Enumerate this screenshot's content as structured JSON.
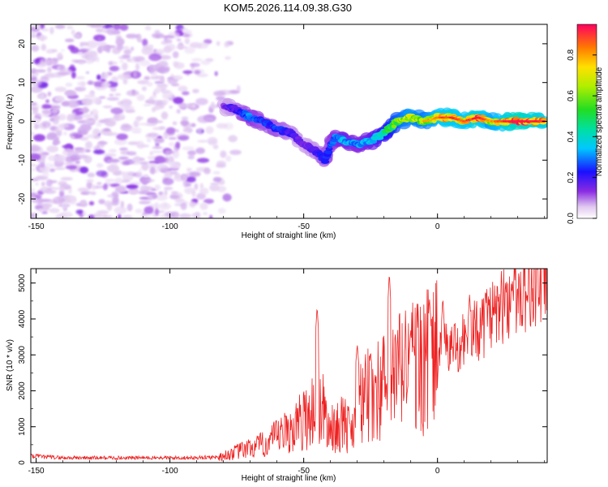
{
  "figure": {
    "title": "KOM5.2026.114.09.38.G30"
  },
  "chart_data": [
    {
      "type": "heatmap",
      "xlabel": "Height of straight line (km)",
      "ylabel": "Frequency (Hz)",
      "xlim": [
        -152,
        41
      ],
      "ylim": [
        -25,
        25
      ],
      "x_ticks": [
        -150,
        -100,
        -50,
        0
      ],
      "y_ticks": [
        -20,
        -10,
        0,
        10,
        20
      ],
      "colorbar": {
        "label": "Normalized spectral amplitude",
        "range": [
          0,
          0.95
        ],
        "ticks": [
          0.0,
          0.2,
          0.4,
          0.6,
          0.8
        ]
      },
      "ridge": {
        "x": [
          -80,
          -75,
          -70,
          -65,
          -60,
          -55,
          -50,
          -45,
          -42,
          -40,
          -38,
          -35,
          -30,
          -25,
          -20,
          -15,
          -10,
          -5,
          0,
          5,
          10,
          15,
          20,
          25,
          30,
          35,
          40
        ],
        "y": [
          4,
          3,
          1,
          0,
          -2,
          -3,
          -6,
          -8,
          -10,
          -6,
          -4,
          -5,
          -6,
          -5,
          -3,
          0,
          1,
          0,
          1,
          1,
          0,
          1,
          0,
          0,
          0,
          0,
          0
        ],
        "amplitude": [
          0.15,
          0.2,
          0.3,
          0.25,
          0.25,
          0.2,
          0.15,
          0.2,
          0.25,
          0.25,
          0.3,
          0.35,
          0.3,
          0.35,
          0.45,
          0.6,
          0.7,
          0.65,
          0.75,
          0.8,
          0.75,
          0.85,
          0.7,
          0.8,
          0.9,
          0.85,
          0.8
        ]
      }
    },
    {
      "type": "line",
      "xlabel": "Height of straight line (km)",
      "ylabel": "SNR (10 * v/v)",
      "xlim": [
        -152,
        41
      ],
      "ylim": [
        0,
        5400
      ],
      "x_ticks": [
        -150,
        -100,
        -50,
        0
      ],
      "y_ticks": [
        0,
        1000,
        2000,
        3000,
        4000,
        5000
      ],
      "series": [
        {
          "color": "#ee2222",
          "envelope_x": [
            -152,
            -140,
            -120,
            -100,
            -90,
            -80,
            -75,
            -70,
            -65,
            -60,
            -55,
            -50,
            -45,
            -43,
            -40,
            -35,
            -32,
            -30,
            -25,
            -20,
            -18,
            -15,
            -10,
            -5,
            0,
            5,
            10,
            15,
            20,
            25,
            30,
            35,
            41
          ],
          "envelope_y": [
            200,
            150,
            150,
            150,
            150,
            180,
            300,
            400,
            500,
            700,
            900,
            1200,
            1600,
            1500,
            900,
            1100,
            900,
            1500,
            1900,
            2100,
            2000,
            2500,
            2700,
            2800,
            3000,
            3200,
            3400,
            3700,
            4000,
            4400,
            4700,
            4900,
            4950
          ],
          "spikes": [
            [
              -45,
              4350
            ],
            [
              -30,
              3300
            ],
            [
              -25,
              3100
            ],
            [
              -18,
              5300
            ],
            [
              -10,
              3700
            ],
            [
              -3,
              4600
            ],
            [
              2,
              4600
            ],
            [
              12,
              4700
            ],
            [
              18,
              4850
            ],
            [
              28,
              5050
            ]
          ]
        }
      ]
    }
  ]
}
